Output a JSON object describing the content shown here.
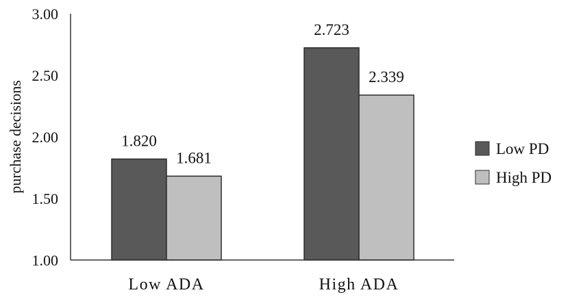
{
  "chart_data": {
    "type": "bar",
    "categories": [
      "Low ADA",
      "High ADA"
    ],
    "series": [
      {
        "name": "Low PD",
        "values": [
          1.82,
          2.723
        ],
        "color": "#595959"
      },
      {
        "name": "High PD",
        "values": [
          1.681,
          2.339
        ],
        "color": "#bfbfbf"
      }
    ],
    "data_labels": [
      [
        "1.820",
        "2.723"
      ],
      [
        "1.681",
        "2.339"
      ]
    ],
    "ylabel": "purchase decisions",
    "xlabel": "",
    "ylim": [
      1.0,
      3.0
    ],
    "yticks": [
      "1.00",
      "1.50",
      "2.00",
      "2.50",
      "3.00"
    ],
    "grid": false,
    "legend": {
      "position": "right",
      "entries": [
        "Low PD",
        "High PD"
      ]
    }
  }
}
